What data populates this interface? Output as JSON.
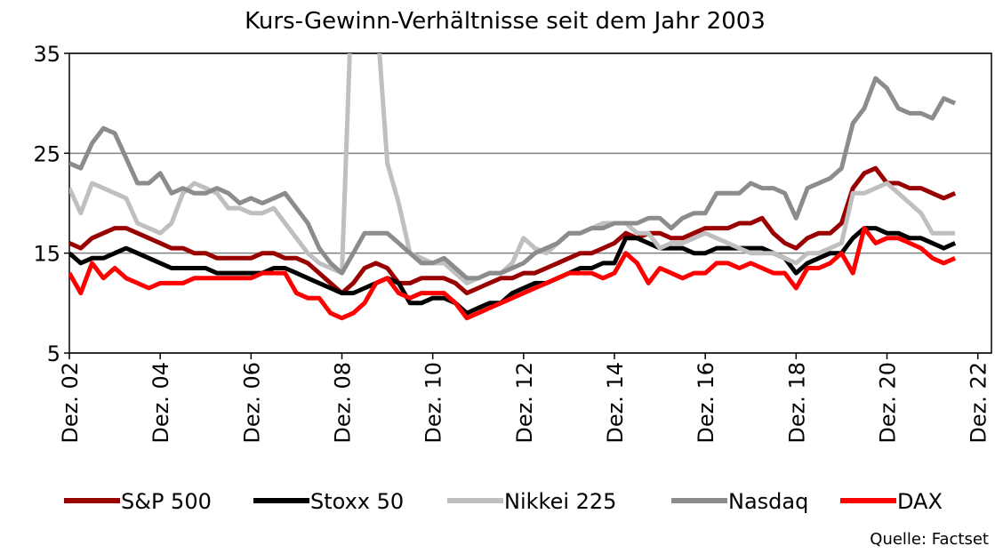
{
  "chart_data": {
    "type": "line",
    "title": "Kurs-Gewinn-Verhältnisse seit dem Jahr 2003",
    "source": "Quelle: Factset",
    "x": [
      2002.92,
      2003.17,
      2003.42,
      2003.67,
      2003.92,
      2004.17,
      2004.42,
      2004.67,
      2004.92,
      2005.17,
      2005.42,
      2005.67,
      2005.92,
      2006.17,
      2006.42,
      2006.67,
      2006.92,
      2007.17,
      2007.42,
      2007.67,
      2007.92,
      2008.17,
      2008.42,
      2008.67,
      2008.92,
      2009.17,
      2009.42,
      2009.67,
      2009.92,
      2010.17,
      2010.42,
      2010.67,
      2010.92,
      2011.17,
      2011.42,
      2011.67,
      2011.92,
      2012.17,
      2012.42,
      2012.67,
      2012.92,
      2013.17,
      2013.42,
      2013.67,
      2013.92,
      2014.17,
      2014.42,
      2014.67,
      2014.92,
      2015.17,
      2015.42,
      2015.67,
      2015.92,
      2016.17,
      2016.42,
      2016.67,
      2016.92,
      2017.17,
      2017.42,
      2017.67,
      2017.92,
      2018.17,
      2018.42,
      2018.67,
      2018.92,
      2019.17,
      2019.42,
      2019.67,
      2019.92,
      2020.17,
      2020.42,
      2020.67,
      2020.92,
      2021.17,
      2021.42,
      2021.67,
      2021.92,
      2022.17,
      2022.42
    ],
    "series": [
      {
        "name": "S&P 500",
        "color": "#990000",
        "values": [
          16,
          15.5,
          16.5,
          17,
          17.5,
          17.5,
          17,
          16.5,
          16,
          15.5,
          15.5,
          15,
          15,
          14.5,
          14.5,
          14.5,
          14.5,
          15,
          15,
          14.5,
          14.5,
          14,
          13,
          12,
          11,
          12,
          13.5,
          14,
          13.5,
          12,
          12,
          12.5,
          12.5,
          12.5,
          12,
          11,
          11.5,
          12,
          12.5,
          12.5,
          13,
          13,
          13.5,
          14,
          14.5,
          15,
          15,
          15.5,
          16,
          17,
          16.5,
          17,
          17,
          16.5,
          16.5,
          17,
          17.5,
          17.5,
          17.5,
          18,
          18,
          18.5,
          17,
          16,
          15.5,
          16.5,
          17,
          17,
          18,
          21.5,
          23,
          23.5,
          22,
          22,
          21.5,
          21.5,
          21,
          20.5,
          21
        ]
      },
      {
        "name": "Stoxx 50",
        "color": "#000000",
        "values": [
          15,
          14,
          14.5,
          14.5,
          15,
          15.5,
          15,
          14.5,
          14,
          13.5,
          13.5,
          13.5,
          13.5,
          13,
          13,
          13,
          13,
          13,
          13.5,
          13.5,
          13,
          12.5,
          12,
          11.5,
          11,
          11,
          11.5,
          12,
          12.5,
          12,
          10,
          10,
          10.5,
          10.5,
          10,
          9,
          9.5,
          10,
          10,
          11,
          11.5,
          12,
          12,
          12.5,
          13,
          13.5,
          13.5,
          14,
          14,
          16.5,
          16.5,
          16,
          15.5,
          15.5,
          15.5,
          15,
          15,
          15.5,
          15.5,
          15.5,
          15.5,
          15.5,
          15,
          14.5,
          13,
          14,
          14.5,
          15,
          15,
          16.5,
          17.5,
          17.5,
          17,
          17,
          16.5,
          16.5,
          16,
          15.5,
          16
        ]
      },
      {
        "name": "Nikkei 225",
        "color": "#bfbfbf",
        "values": [
          21.5,
          19,
          22,
          21.5,
          21,
          20.5,
          18,
          17.5,
          17,
          18,
          21,
          22,
          21.5,
          21,
          19.5,
          19.5,
          19,
          19,
          19.5,
          18,
          16.5,
          15,
          14,
          13.5,
          13,
          45,
          40,
          40,
          24,
          20,
          15,
          14.5,
          14,
          14,
          13,
          12,
          12.5,
          13,
          13,
          14,
          16.5,
          15.5,
          15,
          16,
          17,
          17,
          17.5,
          18,
          18,
          18,
          17,
          17,
          15.5,
          16,
          16,
          16.5,
          17,
          16.5,
          16,
          15.5,
          15,
          15,
          15,
          14.5,
          14,
          15,
          15,
          15.5,
          16,
          21,
          21,
          21.5,
          22,
          21,
          20,
          19,
          17,
          17,
          17
        ]
      },
      {
        "name": "Nasdaq",
        "color": "#8c8c8c",
        "values": [
          24,
          23.5,
          26,
          27.5,
          27,
          24.5,
          22,
          22,
          23,
          21,
          21.5,
          21,
          21,
          21.5,
          21,
          20,
          20.5,
          20,
          20.5,
          21,
          19.5,
          18,
          15.5,
          14,
          13,
          15,
          17,
          17,
          17,
          16,
          15,
          14,
          14,
          14.5,
          13.5,
          12.5,
          12.5,
          13,
          13,
          13.5,
          14,
          15,
          15.5,
          16,
          17,
          17,
          17.5,
          17.5,
          18,
          18,
          18,
          18.5,
          18.5,
          17.5,
          18.5,
          19,
          19,
          21,
          21,
          21,
          22,
          21.5,
          21.5,
          21,
          18.5,
          21.5,
          22,
          22.5,
          23.5,
          28,
          29.5,
          32.5,
          31.5,
          29.5,
          29,
          29,
          28.5,
          30.5,
          30
        ]
      },
      {
        "name": "DAX",
        "color": "#ff0000",
        "values": [
          13,
          11,
          14,
          12.5,
          13.5,
          12.5,
          12,
          11.5,
          12,
          12,
          12,
          12.5,
          12.5,
          12.5,
          12.5,
          12.5,
          12.5,
          13,
          13,
          13,
          11,
          10.5,
          10.5,
          9,
          8.5,
          9,
          10,
          12,
          12.5,
          11,
          10.5,
          11,
          11,
          11,
          10,
          8.5,
          9,
          9.5,
          10,
          10.5,
          11,
          11.5,
          12,
          12.5,
          13,
          13,
          13,
          12.5,
          13,
          15,
          14,
          12,
          13.5,
          13,
          12.5,
          13,
          13,
          14,
          14,
          13.5,
          14,
          13.5,
          13,
          13,
          11.5,
          13.5,
          13.5,
          14,
          15,
          13,
          17.5,
          16,
          16.5,
          16.5,
          16,
          15.5,
          14.5,
          14,
          14.5
        ]
      }
    ],
    "xlim": [
      2002.92,
      2023.22
    ],
    "xticks": [
      {
        "value": 2002.92,
        "label": "Dez. 02"
      },
      {
        "value": 2004.92,
        "label": "Dez. 04"
      },
      {
        "value": 2006.92,
        "label": "Dez. 06"
      },
      {
        "value": 2008.92,
        "label": "Dez. 08"
      },
      {
        "value": 2010.92,
        "label": "Dez. 10"
      },
      {
        "value": 2012.92,
        "label": "Dez. 12"
      },
      {
        "value": 2014.92,
        "label": "Dez. 14"
      },
      {
        "value": 2016.92,
        "label": "Dez. 16"
      },
      {
        "value": 2018.92,
        "label": "Dez. 18"
      },
      {
        "value": 2020.92,
        "label": "Dez. 20"
      },
      {
        "value": 2022.92,
        "label": "Dez. 22"
      }
    ],
    "ylim": [
      5,
      35
    ],
    "yticks": [
      5,
      15,
      25,
      35
    ],
    "grid": true,
    "legend": "bottom"
  }
}
